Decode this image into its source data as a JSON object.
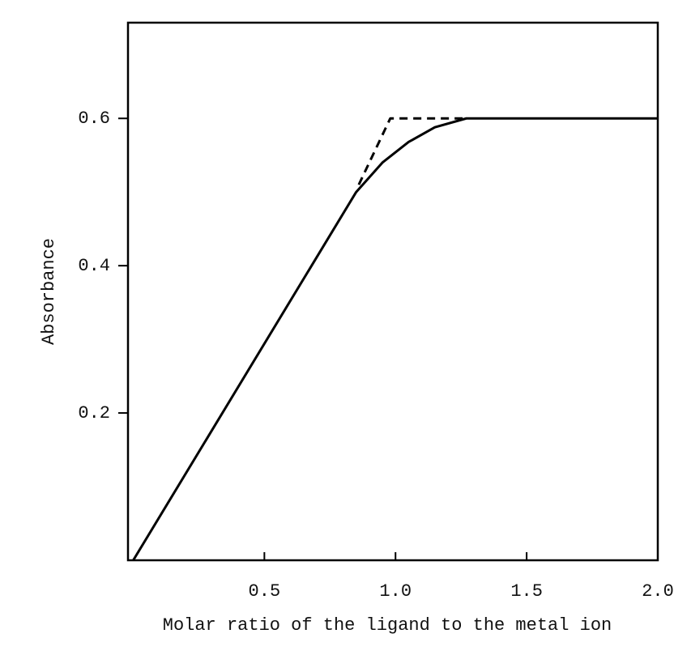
{
  "chart_data": {
    "type": "line",
    "x_label": "Molar ratio of the ligand to the metal ion",
    "y_label": "Absorbance",
    "series": [
      {
        "color": "#000000",
        "dash": false,
        "x": [
          0,
          0.85,
          0.95,
          1.05,
          1.15,
          1.27,
          2.0
        ],
        "values": [
          0,
          0.5,
          0.54,
          0.568,
          0.588,
          0.6,
          0.6
        ]
      },
      {
        "color": "#000000",
        "dash": true,
        "x": [
          0.86,
          0.98,
          1.27
        ],
        "values": [
          0.51,
          0.6,
          0.6
        ]
      }
    ],
    "xlim": [
      -0.02,
      2.0
    ],
    "xticks": [
      0.5,
      {
        "value": 1,
        "label": "1.0"
      },
      1.5,
      {
        "value": 2,
        "label": "2.0"
      }
    ],
    "ylim": [
      0,
      0.73
    ],
    "yticks": [
      0.2,
      0.4,
      0.6
    ],
    "grid": false
  }
}
